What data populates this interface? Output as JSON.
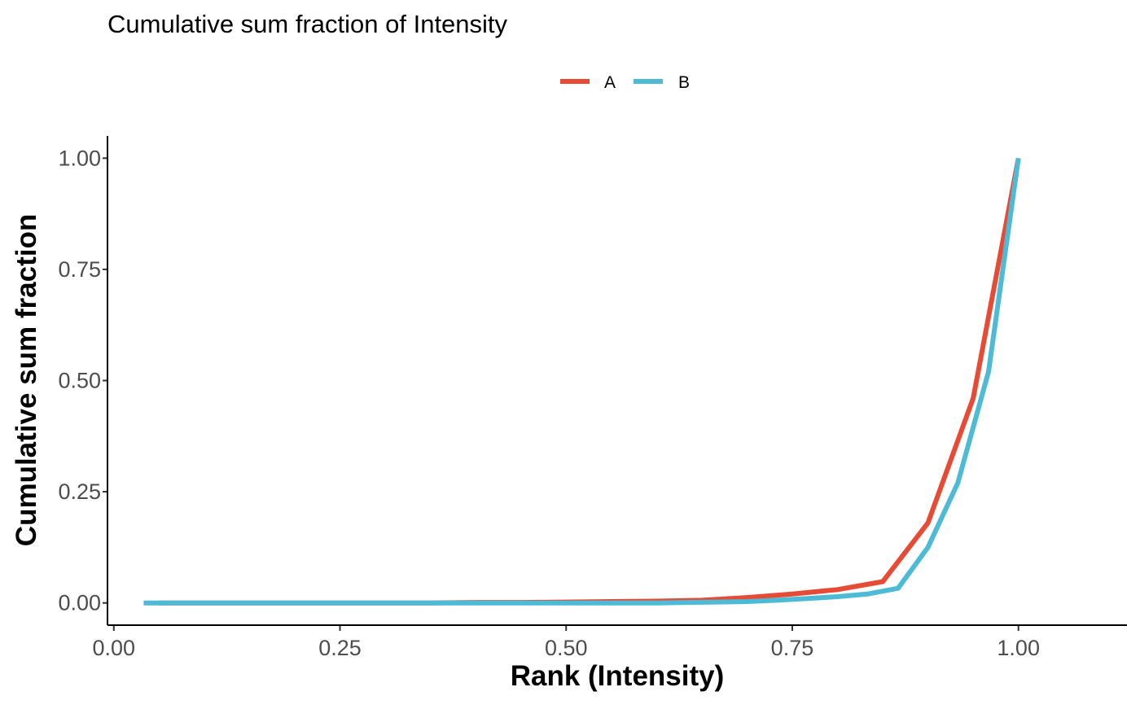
{
  "colors": {
    "A": "#E64B35",
    "B": "#4DBBD5",
    "axis": "#000000",
    "tick_text": "#4d4d4d"
  },
  "chart_data": {
    "type": "line",
    "title": "Cumulative sum fraction of Intensity",
    "xlabel": "Rank (Intensity)",
    "ylabel": "Cumulative sum fraction",
    "xlim": [
      -0.007,
      1.12
    ],
    "ylim": [
      -0.05,
      1.05
    ],
    "grid": false,
    "legend_position": "top",
    "x_ticks": [
      0,
      0.25,
      0.5,
      0.75,
      1
    ],
    "x_tick_labels": [
      "0.00",
      "0.25",
      "0.50",
      "0.75",
      "1.00"
    ],
    "y_ticks": [
      0,
      0.25,
      0.5,
      0.75,
      1
    ],
    "y_tick_labels": [
      "0.00",
      "0.25",
      "0.50",
      "0.75",
      "1.00"
    ],
    "series": [
      {
        "name": "A",
        "color": "#E64B35",
        "points": [
          [
            0.05,
            0.0
          ],
          [
            0.1,
            0.0
          ],
          [
            0.15,
            0.0
          ],
          [
            0.2,
            0.0
          ],
          [
            0.25,
            0.0
          ],
          [
            0.3,
            0.0
          ],
          [
            0.35,
            0.0
          ],
          [
            0.4,
            0.001
          ],
          [
            0.45,
            0.001
          ],
          [
            0.5,
            0.002
          ],
          [
            0.55,
            0.003
          ],
          [
            0.6,
            0.004
          ],
          [
            0.65,
            0.006
          ],
          [
            0.7,
            0.012
          ],
          [
            0.75,
            0.02
          ],
          [
            0.8,
            0.03
          ],
          [
            0.85,
            0.048
          ],
          [
            0.9,
            0.18
          ],
          [
            0.95,
            0.46
          ],
          [
            1.0,
            1.0
          ]
        ]
      },
      {
        "name": "B",
        "color": "#4DBBD5",
        "points": [
          [
            0.033,
            0.0
          ],
          [
            0.067,
            0.0
          ],
          [
            0.1,
            0.0
          ],
          [
            0.133,
            0.0
          ],
          [
            0.167,
            0.0
          ],
          [
            0.2,
            0.0
          ],
          [
            0.233,
            0.0
          ],
          [
            0.267,
            0.0
          ],
          [
            0.3,
            0.0
          ],
          [
            0.333,
            0.0
          ],
          [
            0.367,
            0.0
          ],
          [
            0.4,
            0.0
          ],
          [
            0.433,
            0.0
          ],
          [
            0.467,
            0.0
          ],
          [
            0.5,
            0.0
          ],
          [
            0.533,
            0.0
          ],
          [
            0.567,
            0.0
          ],
          [
            0.6,
            0.0
          ],
          [
            0.633,
            0.001
          ],
          [
            0.667,
            0.002
          ],
          [
            0.7,
            0.003
          ],
          [
            0.733,
            0.006
          ],
          [
            0.767,
            0.01
          ],
          [
            0.8,
            0.014
          ],
          [
            0.833,
            0.02
          ],
          [
            0.867,
            0.033
          ],
          [
            0.9,
            0.125
          ],
          [
            0.933,
            0.27
          ],
          [
            0.967,
            0.52
          ],
          [
            1.0,
            1.0
          ]
        ]
      }
    ]
  }
}
